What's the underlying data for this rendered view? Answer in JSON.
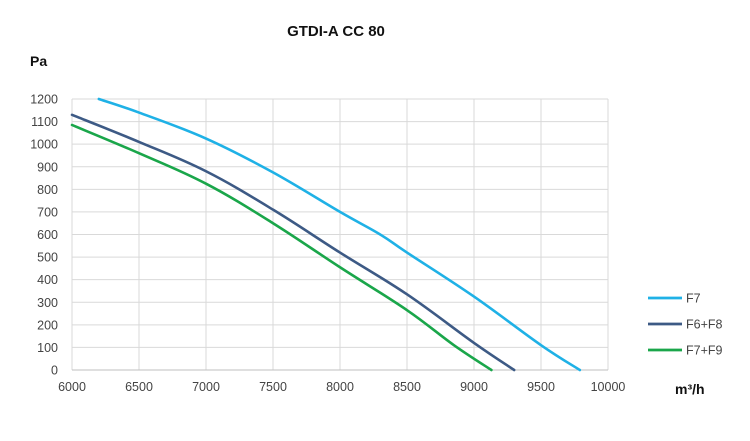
{
  "chart_data": {
    "type": "line",
    "title": "GTDI-A CC 80",
    "ylabel": "Pa",
    "xlabel": "m³/h",
    "xlim": [
      6000,
      10000
    ],
    "ylim": [
      0,
      1200
    ],
    "x_ticks": [
      6000,
      6500,
      7000,
      7500,
      8000,
      8500,
      9000,
      9500,
      10000
    ],
    "y_ticks": [
      0,
      100,
      200,
      300,
      400,
      500,
      600,
      700,
      800,
      900,
      1000,
      1100,
      1200
    ],
    "grid": true,
    "legend_position": "right",
    "series": [
      {
        "name": "F7",
        "color": "#1fb1e6",
        "points": [
          [
            6200,
            1200
          ],
          [
            6500,
            1140
          ],
          [
            7000,
            1025
          ],
          [
            7500,
            875
          ],
          [
            8000,
            700
          ],
          [
            8300,
            600
          ],
          [
            8500,
            520
          ],
          [
            9000,
            325
          ],
          [
            9500,
            110
          ],
          [
            9790,
            0
          ]
        ]
      },
      {
        "name": "F6+F8",
        "color": "#3d5a85",
        "points": [
          [
            6000,
            1130
          ],
          [
            6500,
            1010
          ],
          [
            7000,
            880
          ],
          [
            7500,
            710
          ],
          [
            8000,
            520
          ],
          [
            8500,
            335
          ],
          [
            9000,
            120
          ],
          [
            9300,
            0
          ]
        ]
      },
      {
        "name": "F7+F9",
        "color": "#1aa64a",
        "points": [
          [
            6000,
            1085
          ],
          [
            6500,
            960
          ],
          [
            7000,
            825
          ],
          [
            7500,
            650
          ],
          [
            8000,
            455
          ],
          [
            8500,
            265
          ],
          [
            8850,
            110
          ],
          [
            9130,
            0
          ]
        ]
      }
    ]
  }
}
